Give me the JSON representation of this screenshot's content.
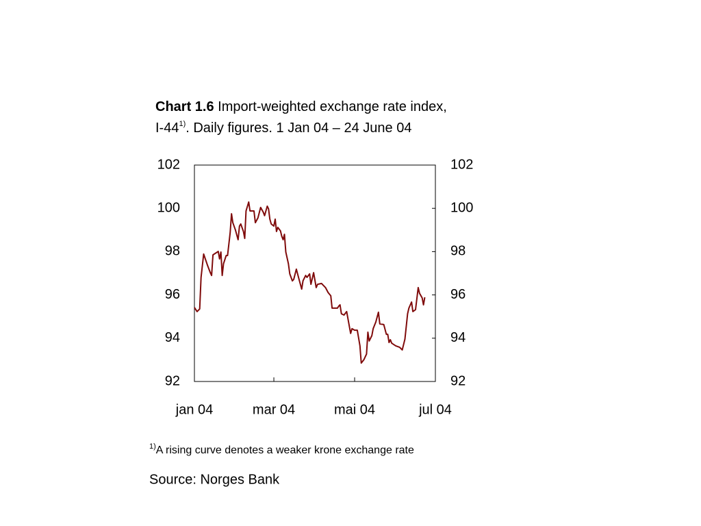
{
  "chart_data": {
    "type": "line",
    "title_label": "Chart 1.6",
    "title_line1": "Import-weighted exchange rate index,",
    "title_line2": "I-44",
    "title_sup": "1)",
    "title_rest": ". Daily figures. 1 Jan 04 – 24 June 04",
    "footnote_sup": "1)",
    "footnote": "A rising curve denotes a weaker krone exchange rate",
    "source": "Source: Norges Bank",
    "x": [
      0,
      2,
      4,
      5,
      7,
      10,
      12,
      13,
      14,
      18,
      19,
      20,
      21,
      22,
      24,
      25,
      27,
      28,
      29,
      31,
      33,
      34,
      35,
      37,
      38,
      39,
      41,
      42,
      45,
      46,
      48,
      50,
      52,
      53,
      55,
      56,
      57,
      58,
      60,
      61,
      62,
      63,
      65,
      66,
      67,
      68,
      69,
      71,
      72,
      74,
      75,
      77,
      79,
      81,
      82,
      84,
      85,
      87,
      88,
      90,
      92,
      93,
      96,
      99,
      101,
      103,
      104,
      108,
      109,
      110,
      111,
      113,
      115,
      116,
      118,
      119,
      121,
      123,
      125,
      126,
      128,
      130,
      131,
      132,
      134,
      135,
      137,
      139,
      140,
      143,
      145,
      146,
      147,
      148,
      149,
      152,
      155,
      157,
      159,
      161,
      162,
      164,
      165,
      167,
      169,
      170,
      172,
      173,
      174
    ],
    "series": [
      {
        "name": "I-44",
        "color": "#7f0a0a",
        "values": [
          95.42,
          95.23,
          95.35,
          96.81,
          97.89,
          97.35,
          97.03,
          96.9,
          97.85,
          98.01,
          97.66,
          97.98,
          96.9,
          97.44,
          97.82,
          97.82,
          98.87,
          99.75,
          99.34,
          98.99,
          98.55,
          99.18,
          99.28,
          98.93,
          98.61,
          99.88,
          100.29,
          99.88,
          99.88,
          99.34,
          99.56,
          100.04,
          99.82,
          99.66,
          100.1,
          99.97,
          99.5,
          99.28,
          99.18,
          99.5,
          98.93,
          99.12,
          98.96,
          98.71,
          98.55,
          98.8,
          97.98,
          97.44,
          96.97,
          96.65,
          96.72,
          97.19,
          96.72,
          96.27,
          96.65,
          96.9,
          96.81,
          96.97,
          96.49,
          97.03,
          96.34,
          96.49,
          96.53,
          96.34,
          96.11,
          95.96,
          95.39,
          95.39,
          95.48,
          95.54,
          95.13,
          95.07,
          95.23,
          94.88,
          94.22,
          94.44,
          94.37,
          94.37,
          93.65,
          92.85,
          93.01,
          93.27,
          94.28,
          93.87,
          94.12,
          94.44,
          94.75,
          95.2,
          94.66,
          94.63,
          94.18,
          94.18,
          93.8,
          93.93,
          93.77,
          93.65,
          93.58,
          93.46,
          93.96,
          95.13,
          95.39,
          95.67,
          95.23,
          95.32,
          96.34,
          96.08,
          95.86,
          95.54,
          95.89
        ]
      }
    ],
    "xlim": [
      0,
      182
    ],
    "xticks": [
      {
        "value": 0,
        "label": "jan 04"
      },
      {
        "value": 60,
        "label": "mar 04"
      },
      {
        "value": 121,
        "label": "mai 04"
      },
      {
        "value": 182,
        "label": "jul 04"
      }
    ],
    "ylim": [
      92,
      102
    ],
    "yticks": [
      92,
      94,
      96,
      98,
      100,
      102
    ],
    "y2lim": [
      92,
      102
    ],
    "y2ticks": [
      92,
      94,
      96,
      98,
      100,
      102
    ]
  }
}
